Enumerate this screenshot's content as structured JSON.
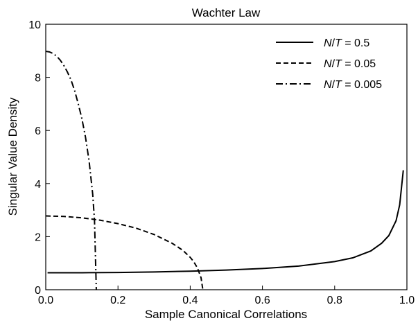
{
  "chart_data": {
    "type": "line",
    "title": "Wachter Law",
    "xlabel": "Sample Canonical Correlations",
    "ylabel": "Singular Value Density",
    "xlim": [
      0.0,
      1.0
    ],
    "ylim": [
      0,
      10
    ],
    "x_ticks": [
      "0.0",
      "0.2",
      "0.4",
      "0.6",
      "0.8",
      "1.0"
    ],
    "y_ticks": [
      "0",
      "2",
      "4",
      "6",
      "8",
      "10"
    ],
    "grid": false,
    "legend": {
      "placement": "top-right",
      "entries": [
        {
          "prefix": "N",
          "slash": "/",
          "var": "T",
          "suffix": " = 0.5",
          "dash": "solid"
        },
        {
          "prefix": "N",
          "slash": "/",
          "var": "T",
          "suffix": " = 0.05",
          "dash": "dashed"
        },
        {
          "prefix": "N",
          "slash": "/",
          "var": "T",
          "suffix": " = 0.005",
          "dash": "dashdot"
        }
      ]
    },
    "series": [
      {
        "name": "N/T = 0.5",
        "dash": "solid",
        "x": [
          0.005,
          0.1,
          0.2,
          0.3,
          0.4,
          0.5,
          0.6,
          0.7,
          0.8,
          0.85,
          0.9,
          0.93,
          0.95,
          0.97,
          0.98,
          0.99
        ],
        "y": [
          0.64,
          0.64,
          0.65,
          0.67,
          0.7,
          0.74,
          0.8,
          0.89,
          1.06,
          1.2,
          1.46,
          1.75,
          2.04,
          2.6,
          3.2,
          4.5
        ]
      },
      {
        "name": "N/T = 0.05",
        "dash": "dashed",
        "x": [
          0.0,
          0.05,
          0.1,
          0.15,
          0.2,
          0.25,
          0.3,
          0.35,
          0.38,
          0.4,
          0.41,
          0.42,
          0.43,
          0.435
        ],
        "y": [
          2.78,
          2.76,
          2.71,
          2.62,
          2.49,
          2.32,
          2.08,
          1.75,
          1.48,
          1.22,
          1.05,
          0.82,
          0.45,
          0.0
        ]
      },
      {
        "name": "N/T = 0.005",
        "dash": "dashdot",
        "x": [
          0.0,
          0.01,
          0.02,
          0.03,
          0.04,
          0.05,
          0.06,
          0.07,
          0.08,
          0.09,
          0.1,
          0.11,
          0.12,
          0.13,
          0.135,
          0.14
        ],
        "y": [
          8.98,
          8.96,
          8.9,
          8.8,
          8.65,
          8.45,
          8.2,
          7.9,
          7.5,
          7.0,
          6.45,
          5.75,
          4.85,
          3.6,
          2.6,
          0.0
        ]
      }
    ]
  }
}
